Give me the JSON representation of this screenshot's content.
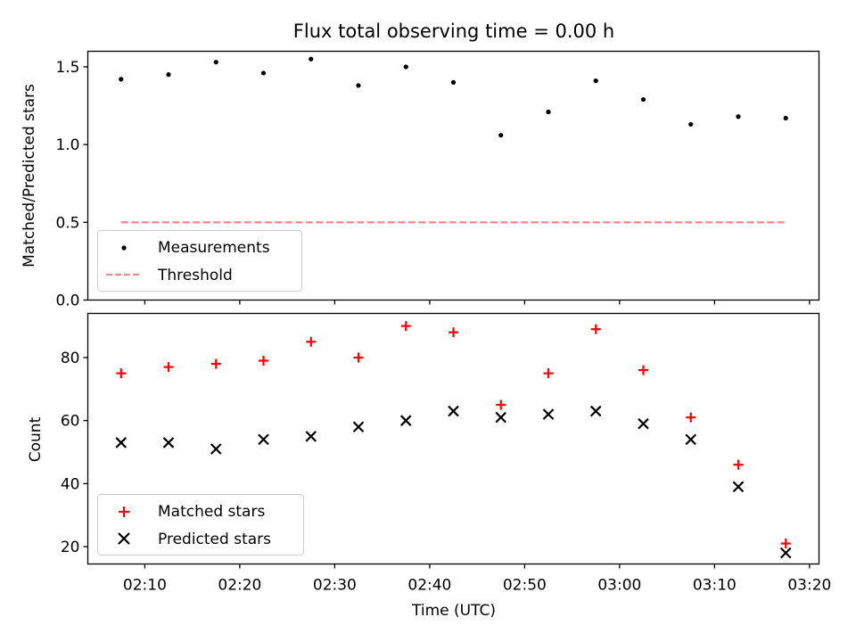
{
  "chart_data": [
    {
      "type": "scatter",
      "title": "Flux total observing time = 0.00 h",
      "xlabel": "",
      "ylabel": "Matched/Predicted stars",
      "ylim": [
        0,
        1.6
      ],
      "yticks": [
        0.0,
        0.5,
        1.0,
        1.5
      ],
      "ytick_labels": [
        "0.0",
        "0.5",
        "1.0",
        "1.5"
      ],
      "xlim": [
        "02:04:00",
        "03:21:00"
      ],
      "x": [
        "02:07:30",
        "02:12:30",
        "02:17:30",
        "02:22:30",
        "02:27:30",
        "02:32:30",
        "02:37:30",
        "02:42:30",
        "02:47:30",
        "02:52:30",
        "02:57:30",
        "03:02:30",
        "03:07:30",
        "03:12:30",
        "03:17:30"
      ],
      "series": [
        {
          "name": "Measurements",
          "marker": "dot",
          "color": "#000000",
          "values": [
            1.42,
            1.45,
            1.53,
            1.46,
            1.55,
            1.38,
            1.5,
            1.4,
            1.06,
            1.21,
            1.41,
            1.29,
            1.13,
            1.18,
            1.17
          ]
        }
      ],
      "threshold": {
        "name": "Threshold",
        "value": 0.5,
        "x_from": "02:07:30",
        "x_to": "03:17:30",
        "color": "#ff8080",
        "style": "dashed"
      },
      "legend_position": "lower-left",
      "grid": false
    },
    {
      "type": "scatter",
      "xlabel": "Time (UTC)",
      "ylabel": "Count",
      "ylim": [
        14.5,
        94
      ],
      "yticks": [
        20,
        40,
        60,
        80
      ],
      "ytick_labels": [
        "20",
        "40",
        "60",
        "80"
      ],
      "xlim": [
        "02:04:00",
        "03:21:00"
      ],
      "xticks": [
        "02:10",
        "02:20",
        "02:30",
        "02:40",
        "02:50",
        "03:00",
        "03:10",
        "03:20"
      ],
      "x": [
        "02:07:30",
        "02:12:30",
        "02:17:30",
        "02:22:30",
        "02:27:30",
        "02:32:30",
        "02:37:30",
        "02:42:30",
        "02:47:30",
        "02:52:30",
        "02:57:30",
        "03:02:30",
        "03:07:30",
        "03:12:30",
        "03:17:30"
      ],
      "series": [
        {
          "name": "Matched stars",
          "marker": "plus",
          "color": "#ff0000",
          "values": [
            75,
            77,
            78,
            79,
            85,
            80,
            90,
            88,
            65,
            75,
            89,
            76,
            61,
            46,
            21
          ]
        },
        {
          "name": "Predicted stars",
          "marker": "x",
          "color": "#000000",
          "values": [
            53,
            53,
            51,
            54,
            55,
            58,
            60,
            63,
            61,
            62,
            63,
            59,
            54,
            39,
            18
          ]
        }
      ],
      "legend_position": "lower-left",
      "grid": false
    }
  ]
}
